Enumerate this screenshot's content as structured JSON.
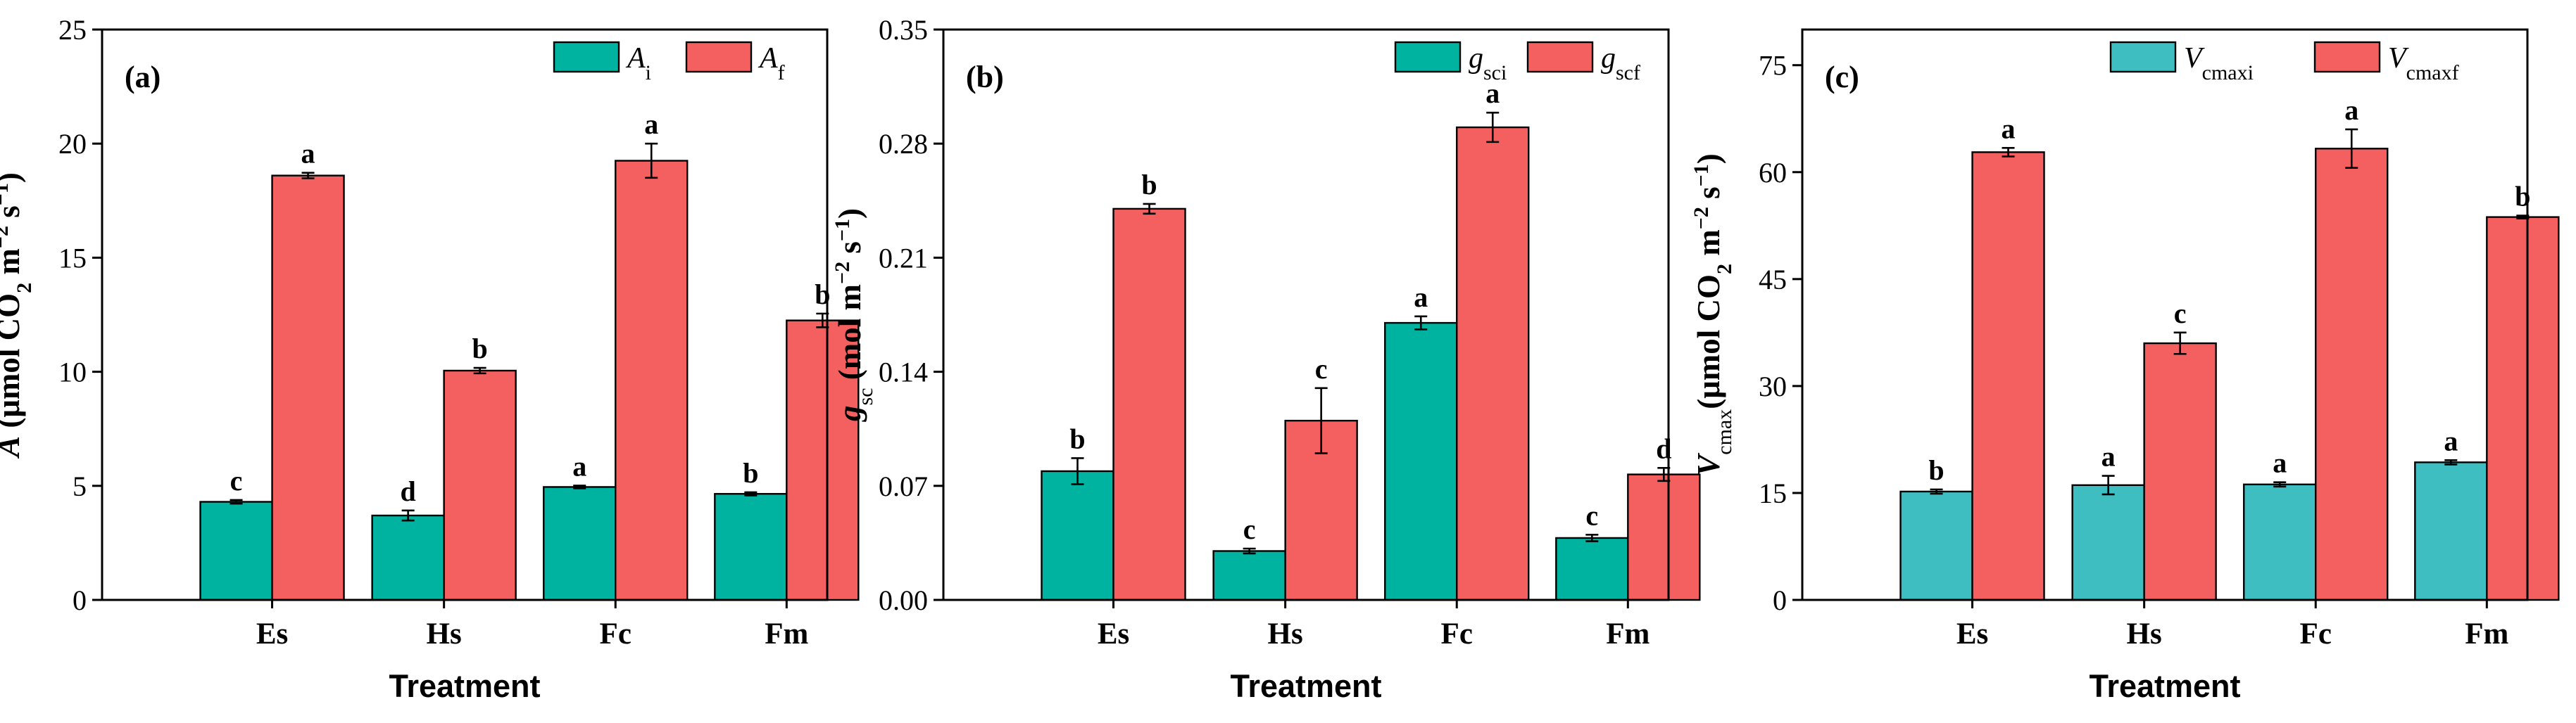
{
  "colors": {
    "initial_ab": "#00B2A0",
    "initial_c": "#3EBEC0",
    "final": "#F4605F",
    "axis": "#000000"
  },
  "chart_data": [
    {
      "type": "bar",
      "panel_label": "(a)",
      "categories": [
        "Es",
        "Hs",
        "Fc",
        "Fm"
      ],
      "xlabel": "Treatment",
      "ylabel_parts": {
        "symbol": "A",
        "rest": " (μmol CO",
        "sub2": "2",
        "mid": " m",
        "sup1": "−2",
        "mid2": " s",
        "sup2": "−1",
        "end": ")"
      },
      "ylim": [
        0,
        25
      ],
      "yticks": [
        0,
        5,
        10,
        15,
        20,
        25
      ],
      "ytick_labels": [
        "0",
        "5",
        "10",
        "15",
        "20",
        "25"
      ],
      "legend_position": "top-right",
      "series": [
        {
          "name": "A_i",
          "legend_main": "A",
          "legend_sub": "i",
          "color_key": "initial_ab",
          "values": [
            4.3,
            3.7,
            4.95,
            4.65
          ],
          "errors": [
            0.08,
            0.22,
            0.06,
            0.07
          ],
          "letters": [
            "c",
            "d",
            "a",
            "b"
          ]
        },
        {
          "name": "A_f",
          "legend_main": "A",
          "legend_sub": "f",
          "color_key": "final",
          "values": [
            18.6,
            10.05,
            19.25,
            12.25
          ],
          "errors": [
            0.12,
            0.12,
            0.75,
            0.3
          ],
          "letters": [
            "a",
            "b",
            "a",
            "b"
          ]
        }
      ]
    },
    {
      "type": "bar",
      "panel_label": "(b)",
      "categories": [
        "Es",
        "Hs",
        "Fc",
        "Fm"
      ],
      "xlabel": "Treatment",
      "ylabel_parts": {
        "symbol": "g",
        "symsub": "sc",
        "rest": " (mol m",
        "sup1": "−2",
        "mid2": " s",
        "sup2": "−1",
        "end": ")"
      },
      "ylim": [
        0,
        0.35
      ],
      "yticks": [
        0,
        0.07,
        0.14,
        0.21,
        0.28,
        0.35
      ],
      "ytick_labels": [
        "0.00",
        "0.07",
        "0.14",
        "0.21",
        "0.28",
        "0.35"
      ],
      "legend_position": "top-right",
      "series": [
        {
          "name": "g_sci",
          "legend_main": "g",
          "legend_sub": "sci",
          "color_key": "initial_ab",
          "values": [
            0.079,
            0.03,
            0.17,
            0.038
          ],
          "errors": [
            0.008,
            0.0015,
            0.004,
            0.002
          ],
          "letters": [
            "b",
            "c",
            "a",
            "c"
          ]
        },
        {
          "name": "g_scf",
          "legend_main": "g",
          "legend_sub": "scf",
          "color_key": "final",
          "values": [
            0.24,
            0.11,
            0.29,
            0.077
          ],
          "errors": [
            0.003,
            0.02,
            0.009,
            0.004
          ],
          "letters": [
            "b",
            "c",
            "a",
            "d"
          ]
        }
      ]
    },
    {
      "type": "bar",
      "panel_label": "(c)",
      "categories": [
        "Es",
        "Hs",
        "Fc",
        "Fm"
      ],
      "xlabel": "Treatment",
      "ylabel_parts": {
        "symbol": "V",
        "symsub": "cmax",
        "rest": "(μmol CO",
        "sub2": "2",
        "mid": " m",
        "sup1": "−2",
        "mid2": " s",
        "sup2": "−1",
        "end": ")"
      },
      "ylim": [
        0,
        80
      ],
      "yticks": [
        0,
        15,
        30,
        45,
        60,
        75
      ],
      "ytick_labels": [
        "0",
        "15",
        "30",
        "45",
        "60",
        "75"
      ],
      "legend_position": "top-right",
      "series": [
        {
          "name": "V_cmaxi",
          "legend_main": "V",
          "legend_sub": "cmaxi",
          "color_key": "initial_c",
          "values": [
            15.2,
            16.1,
            16.2,
            19.3
          ],
          "errors": [
            0.3,
            1.3,
            0.3,
            0.3
          ],
          "letters": [
            "b",
            "a",
            "a",
            "a"
          ]
        },
        {
          "name": "V_cmaxf",
          "legend_main": "V",
          "legend_sub": "cmaxf",
          "color_key": "final",
          "values": [
            62.8,
            36.0,
            63.3,
            53.7
          ],
          "errors": [
            0.6,
            1.5,
            2.7,
            0.2
          ],
          "letters": [
            "a",
            "c",
            "a",
            "b"
          ]
        }
      ]
    }
  ]
}
